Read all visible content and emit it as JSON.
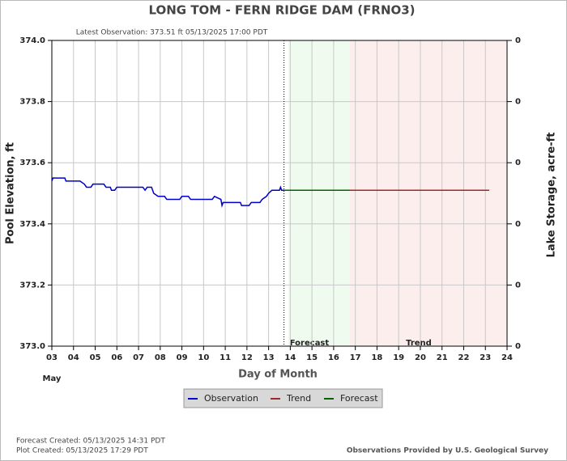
{
  "chart_data": {
    "type": "line",
    "title": "LONG TOM - FERN RIDGE DAM  (FRNO3)",
    "subtitle": "Latest Observation: 373.51 ft 05/13/2025 17:00 PDT",
    "x_label": "Day of Month",
    "month_label": "May",
    "y_label": "Pool Elevation, ft",
    "y2_label": "Lake Storage, acre-ft",
    "xlim": [
      3,
      24
    ],
    "xticks": [
      {
        "value": 3,
        "label": "03"
      },
      {
        "value": 4,
        "label": "04"
      },
      {
        "value": 5,
        "label": "05"
      },
      {
        "value": 6,
        "label": "06"
      },
      {
        "value": 7,
        "label": "07"
      },
      {
        "value": 8,
        "label": "08"
      },
      {
        "value": 9,
        "label": "09"
      },
      10,
      11,
      12,
      13,
      14,
      15,
      16,
      17,
      18,
      19,
      20,
      21,
      22,
      23,
      24
    ],
    "ylim": [
      373.0,
      374.0
    ],
    "yticks": [
      {
        "value": 373.0,
        "label": "373.0"
      },
      373.2,
      373.4,
      373.6,
      373.8,
      {
        "value": 374.0,
        "label": "374.0"
      }
    ],
    "y2lim": [
      373.0,
      374.0
    ],
    "y2ticks": [
      {
        "value": 373.0,
        "label": "0"
      },
      {
        "value": 373.2,
        "label": "0"
      },
      {
        "value": 373.4,
        "label": "0"
      },
      {
        "value": 373.6,
        "label": "0"
      },
      {
        "value": 373.8,
        "label": "0"
      },
      {
        "value": 374.0,
        "label": "0"
      }
    ],
    "grid": true,
    "latest_observation_x": 13.71,
    "regions": [
      {
        "label": "Forecast",
        "x": [
          13.91,
          16.75
        ],
        "color": "#effbef"
      },
      {
        "label": "Trend",
        "x": [
          16.75,
          24
        ],
        "color": "#fdeeee"
      }
    ],
    "series": [
      {
        "name": "Observation",
        "color": "#0000cc",
        "x": [
          3.0,
          3.05,
          3.6,
          3.65,
          4.3,
          4.5,
          4.6,
          4.8,
          4.9,
          5.4,
          5.5,
          5.7,
          5.75,
          5.9,
          6.0,
          7.2,
          7.3,
          7.4,
          7.6,
          7.7,
          7.9,
          8.2,
          8.3,
          8.9,
          9.0,
          9.3,
          9.4,
          10.4,
          10.5,
          10.8,
          10.85,
          10.9,
          11.7,
          11.75,
          12.1,
          12.2,
          12.6,
          12.7,
          12.9,
          13.0,
          13.15,
          13.5,
          13.55,
          13.6,
          13.71
        ],
        "values": [
          373.54,
          373.55,
          373.55,
          373.54,
          373.54,
          373.53,
          373.52,
          373.52,
          373.53,
          373.53,
          373.52,
          373.52,
          373.51,
          373.51,
          373.52,
          373.52,
          373.51,
          373.52,
          373.52,
          373.5,
          373.49,
          373.49,
          373.48,
          373.48,
          373.49,
          373.49,
          373.48,
          373.48,
          373.49,
          373.48,
          373.46,
          373.47,
          373.47,
          373.46,
          373.46,
          373.47,
          373.47,
          373.48,
          373.49,
          373.5,
          373.51,
          373.51,
          373.52,
          373.51,
          373.51
        ]
      },
      {
        "name": "Trend",
        "color": "#a02828",
        "x": [
          16.75,
          23.18
        ],
        "values": [
          373.51,
          373.51
        ]
      },
      {
        "name": "Forecast",
        "color": "#006600",
        "x": [
          13.71,
          16.75
        ],
        "values": [
          373.51,
          373.51
        ]
      }
    ],
    "legend_order": [
      0,
      1,
      2
    ],
    "footer": {
      "forecast_created": "Forecast Created: 05/13/2025 14:31 PDT",
      "plot_created": "Plot Created: 05/13/2025 17:29 PDT",
      "source": "Observations Provided by U.S. Geological Survey"
    }
  }
}
